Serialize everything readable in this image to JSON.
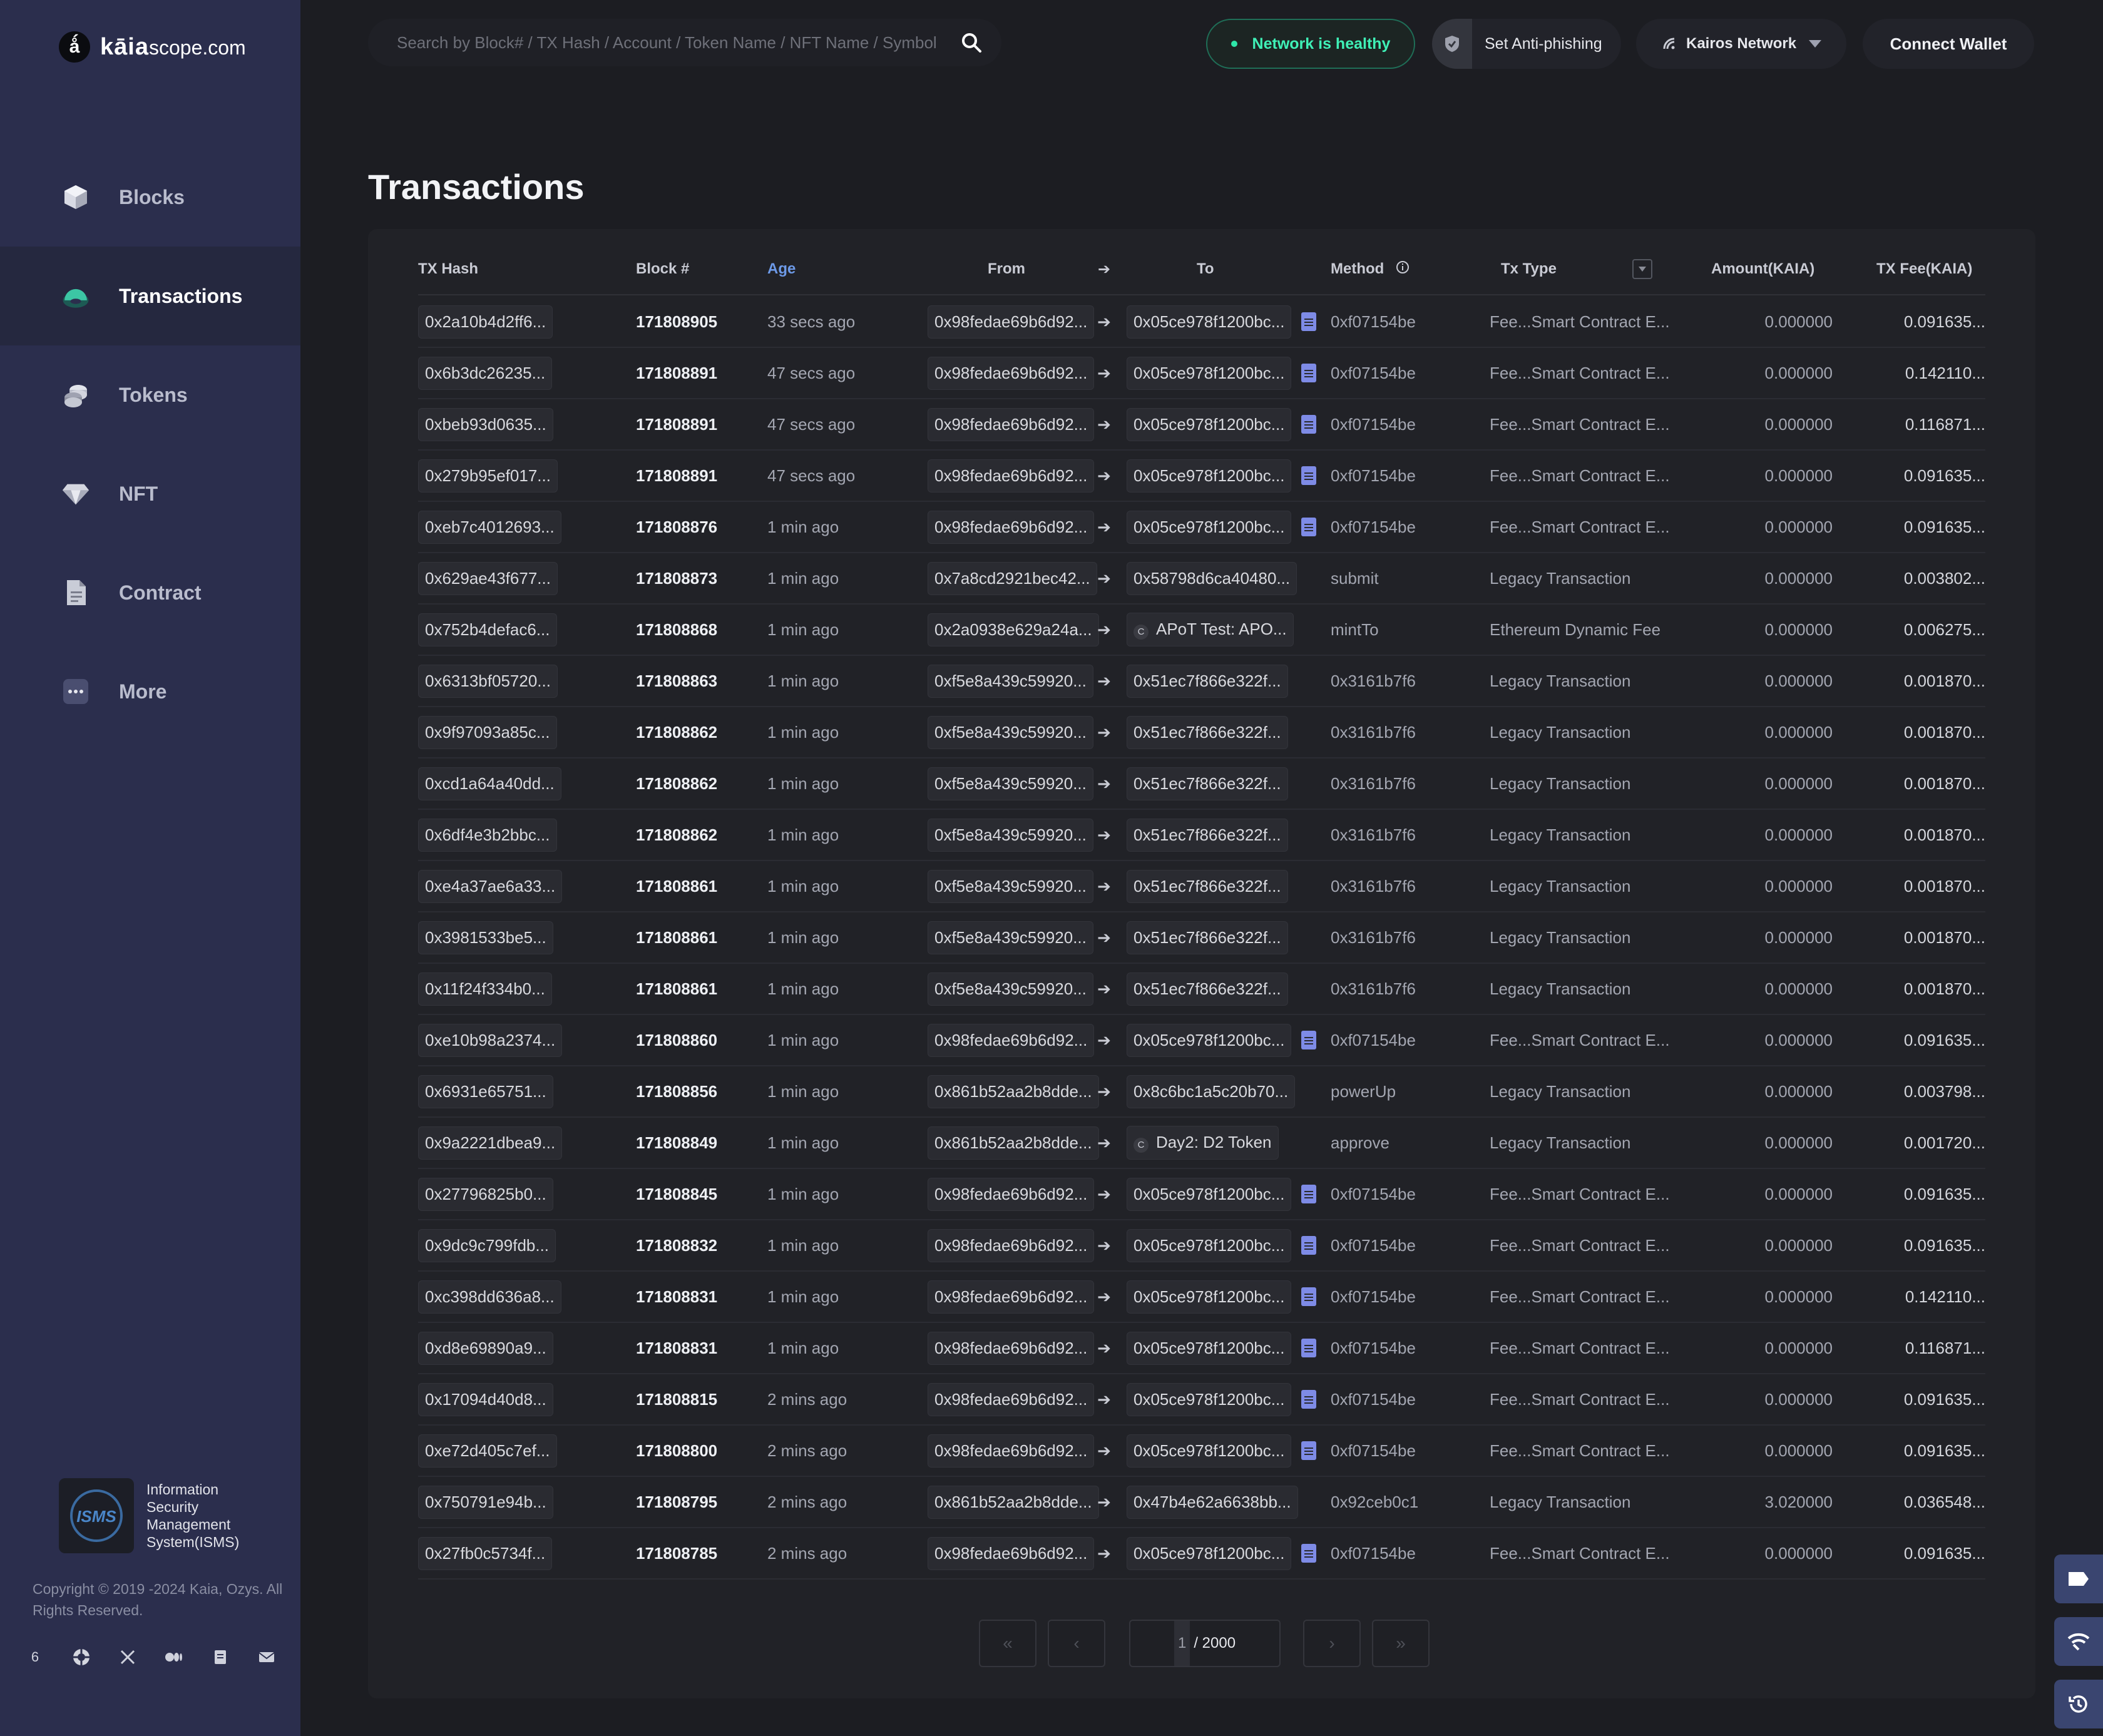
{
  "brand": {
    "name": "kāia",
    "suffix": "scope.com"
  },
  "sidebar": {
    "items": [
      {
        "label": "Blocks",
        "icon": "cube-icon",
        "active": false
      },
      {
        "label": "Transactions",
        "icon": "transactions-icon",
        "active": true
      },
      {
        "label": "Tokens",
        "icon": "coins-icon",
        "active": false
      },
      {
        "label": "NFT",
        "icon": "diamond-icon",
        "active": false
      },
      {
        "label": "Contract",
        "icon": "contract-icon",
        "active": false
      },
      {
        "label": "More",
        "icon": "more-icon",
        "active": false
      }
    ],
    "isms": {
      "badge": "ISMS",
      "text": "Information Security Management System(ISMS)"
    },
    "copyright": "Copyright © 2019 -2024 Kaia, Ozys. All Rights Reserved.",
    "socials": [
      "6",
      "github-icon",
      "x-icon",
      "medium-icon",
      "docs-icon",
      "mail-icon"
    ]
  },
  "header": {
    "search_placeholder": "Search by Block# / TX Hash / Account / Token Name / NFT Name / Symbol",
    "network_status": "Network is healthy",
    "anti_phishing": "Set Anti-phishing",
    "network": "Kairos Network",
    "connect": "Connect Wallet"
  },
  "page": {
    "title": "Transactions"
  },
  "table": {
    "columns": {
      "hash": "TX Hash",
      "block": "Block #",
      "age": "Age",
      "from": "From",
      "to": "To",
      "method": "Method",
      "txtype": "Tx Type",
      "amount": "Amount(KAIA)",
      "fee": "TX Fee(KAIA)"
    },
    "rows": [
      {
        "hash": "0x2a10b4d2ff6...",
        "block": "171808905",
        "age": "33 secs ago",
        "from": "0x98fedae69b6d92...",
        "to": "0x05ce978f1200bc...",
        "to_kind": "contract",
        "method": "0xf07154be",
        "txtype": "Fee...Smart Contract E...",
        "amount": "0.000000",
        "fee": "0.091635..."
      },
      {
        "hash": "0x6b3dc26235...",
        "block": "171808891",
        "age": "47 secs ago",
        "from": "0x98fedae69b6d92...",
        "to": "0x05ce978f1200bc...",
        "to_kind": "contract",
        "method": "0xf07154be",
        "txtype": "Fee...Smart Contract E...",
        "amount": "0.000000",
        "fee": "0.142110..."
      },
      {
        "hash": "0xbeb93d0635...",
        "block": "171808891",
        "age": "47 secs ago",
        "from": "0x98fedae69b6d92...",
        "to": "0x05ce978f1200bc...",
        "to_kind": "contract",
        "method": "0xf07154be",
        "txtype": "Fee...Smart Contract E...",
        "amount": "0.000000",
        "fee": "0.116871..."
      },
      {
        "hash": "0x279b95ef017...",
        "block": "171808891",
        "age": "47 secs ago",
        "from": "0x98fedae69b6d92...",
        "to": "0x05ce978f1200bc...",
        "to_kind": "contract",
        "method": "0xf07154be",
        "txtype": "Fee...Smart Contract E...",
        "amount": "0.000000",
        "fee": "0.091635..."
      },
      {
        "hash": "0xeb7c4012693...",
        "block": "171808876",
        "age": "1 min ago",
        "from": "0x98fedae69b6d92...",
        "to": "0x05ce978f1200bc...",
        "to_kind": "contract",
        "method": "0xf07154be",
        "txtype": "Fee...Smart Contract E...",
        "amount": "0.000000",
        "fee": "0.091635..."
      },
      {
        "hash": "0x629ae43f677...",
        "block": "171808873",
        "age": "1 min ago",
        "from": "0x7a8cd2921bec42...",
        "to": "0x58798d6ca40480...",
        "to_kind": "account",
        "method": "submit",
        "txtype": "Legacy Transaction",
        "amount": "0.000000",
        "fee": "0.003802..."
      },
      {
        "hash": "0x752b4defac6...",
        "block": "171808868",
        "age": "1 min ago",
        "from": "0x2a0938e629a24a...",
        "to": "APoT Test: APO...",
        "to_kind": "token",
        "method": "mintTo",
        "txtype": "Ethereum Dynamic Fee",
        "amount": "0.000000",
        "fee": "0.006275..."
      },
      {
        "hash": "0x6313bf05720...",
        "block": "171808863",
        "age": "1 min ago",
        "from": "0xf5e8a439c59920...",
        "to": "0x51ec7f866e322f...",
        "to_kind": "account",
        "method": "0x3161b7f6",
        "txtype": "Legacy Transaction",
        "amount": "0.000000",
        "fee": "0.001870..."
      },
      {
        "hash": "0x9f97093a85c...",
        "block": "171808862",
        "age": "1 min ago",
        "from": "0xf5e8a439c59920...",
        "to": "0x51ec7f866e322f...",
        "to_kind": "account",
        "method": "0x3161b7f6",
        "txtype": "Legacy Transaction",
        "amount": "0.000000",
        "fee": "0.001870..."
      },
      {
        "hash": "0xcd1a64a40dd...",
        "block": "171808862",
        "age": "1 min ago",
        "from": "0xf5e8a439c59920...",
        "to": "0x51ec7f866e322f...",
        "to_kind": "account",
        "method": "0x3161b7f6",
        "txtype": "Legacy Transaction",
        "amount": "0.000000",
        "fee": "0.001870..."
      },
      {
        "hash": "0x6df4e3b2bbc...",
        "block": "171808862",
        "age": "1 min ago",
        "from": "0xf5e8a439c59920...",
        "to": "0x51ec7f866e322f...",
        "to_kind": "account",
        "method": "0x3161b7f6",
        "txtype": "Legacy Transaction",
        "amount": "0.000000",
        "fee": "0.001870..."
      },
      {
        "hash": "0xe4a37ae6a33...",
        "block": "171808861",
        "age": "1 min ago",
        "from": "0xf5e8a439c59920...",
        "to": "0x51ec7f866e322f...",
        "to_kind": "account",
        "method": "0x3161b7f6",
        "txtype": "Legacy Transaction",
        "amount": "0.000000",
        "fee": "0.001870..."
      },
      {
        "hash": "0x3981533be5...",
        "block": "171808861",
        "age": "1 min ago",
        "from": "0xf5e8a439c59920...",
        "to": "0x51ec7f866e322f...",
        "to_kind": "account",
        "method": "0x3161b7f6",
        "txtype": "Legacy Transaction",
        "amount": "0.000000",
        "fee": "0.001870..."
      },
      {
        "hash": "0x11f24f334b0...",
        "block": "171808861",
        "age": "1 min ago",
        "from": "0xf5e8a439c59920...",
        "to": "0x51ec7f866e322f...",
        "to_kind": "account",
        "method": "0x3161b7f6",
        "txtype": "Legacy Transaction",
        "amount": "0.000000",
        "fee": "0.001870..."
      },
      {
        "hash": "0xe10b98a2374...",
        "block": "171808860",
        "age": "1 min ago",
        "from": "0x98fedae69b6d92...",
        "to": "0x05ce978f1200bc...",
        "to_kind": "contract",
        "method": "0xf07154be",
        "txtype": "Fee...Smart Contract E...",
        "amount": "0.000000",
        "fee": "0.091635..."
      },
      {
        "hash": "0x6931e65751...",
        "block": "171808856",
        "age": "1 min ago",
        "from": "0x861b52aa2b8dde...",
        "to": "0x8c6bc1a5c20b70...",
        "to_kind": "account",
        "method": "powerUp",
        "txtype": "Legacy Transaction",
        "amount": "0.000000",
        "fee": "0.003798..."
      },
      {
        "hash": "0x9a2221dbea9...",
        "block": "171808849",
        "age": "1 min ago",
        "from": "0x861b52aa2b8dde...",
        "to": "Day2: D2 Token",
        "to_kind": "token",
        "method": "approve",
        "txtype": "Legacy Transaction",
        "amount": "0.000000",
        "fee": "0.001720..."
      },
      {
        "hash": "0x27796825b0...",
        "block": "171808845",
        "age": "1 min ago",
        "from": "0x98fedae69b6d92...",
        "to": "0x05ce978f1200bc...",
        "to_kind": "contract",
        "method": "0xf07154be",
        "txtype": "Fee...Smart Contract E...",
        "amount": "0.000000",
        "fee": "0.091635..."
      },
      {
        "hash": "0x9dc9c799fdb...",
        "block": "171808832",
        "age": "1 min ago",
        "from": "0x98fedae69b6d92...",
        "to": "0x05ce978f1200bc...",
        "to_kind": "contract",
        "method": "0xf07154be",
        "txtype": "Fee...Smart Contract E...",
        "amount": "0.000000",
        "fee": "0.091635..."
      },
      {
        "hash": "0xc398dd636a8...",
        "block": "171808831",
        "age": "1 min ago",
        "from": "0x98fedae69b6d92...",
        "to": "0x05ce978f1200bc...",
        "to_kind": "contract",
        "method": "0xf07154be",
        "txtype": "Fee...Smart Contract E...",
        "amount": "0.000000",
        "fee": "0.142110..."
      },
      {
        "hash": "0xd8e69890a9...",
        "block": "171808831",
        "age": "1 min ago",
        "from": "0x98fedae69b6d92...",
        "to": "0x05ce978f1200bc...",
        "to_kind": "contract",
        "method": "0xf07154be",
        "txtype": "Fee...Smart Contract E...",
        "amount": "0.000000",
        "fee": "0.116871..."
      },
      {
        "hash": "0x17094d40d8...",
        "block": "171808815",
        "age": "2 mins ago",
        "from": "0x98fedae69b6d92...",
        "to": "0x05ce978f1200bc...",
        "to_kind": "contract",
        "method": "0xf07154be",
        "txtype": "Fee...Smart Contract E...",
        "amount": "0.000000",
        "fee": "0.091635..."
      },
      {
        "hash": "0xe72d405c7ef...",
        "block": "171808800",
        "age": "2 mins ago",
        "from": "0x98fedae69b6d92...",
        "to": "0x05ce978f1200bc...",
        "to_kind": "contract",
        "method": "0xf07154be",
        "txtype": "Fee...Smart Contract E...",
        "amount": "0.000000",
        "fee": "0.091635..."
      },
      {
        "hash": "0x750791e94b...",
        "block": "171808795",
        "age": "2 mins ago",
        "from": "0x861b52aa2b8dde...",
        "to": "0x47b4e62a6638bb...",
        "to_kind": "account",
        "method": "0x92ceb0c1",
        "txtype": "Legacy Transaction",
        "amount": "3.020000",
        "fee": "0.036548..."
      },
      {
        "hash": "0x27fb0c5734f...",
        "block": "171808785",
        "age": "2 mins ago",
        "from": "0x98fedae69b6d92...",
        "to": "0x05ce978f1200bc...",
        "to_kind": "contract",
        "method": "0xf07154be",
        "txtype": "Fee...Smart Contract E...",
        "amount": "0.000000",
        "fee": "0.091635..."
      }
    ]
  },
  "pagination": {
    "current": "1",
    "total_label": "/ 2000"
  },
  "colors": {
    "sidebar": "#2b2e4d",
    "background": "#1c1d22",
    "accent_green": "#3ff0b6",
    "accent_blue": "#6d9ae8"
  }
}
